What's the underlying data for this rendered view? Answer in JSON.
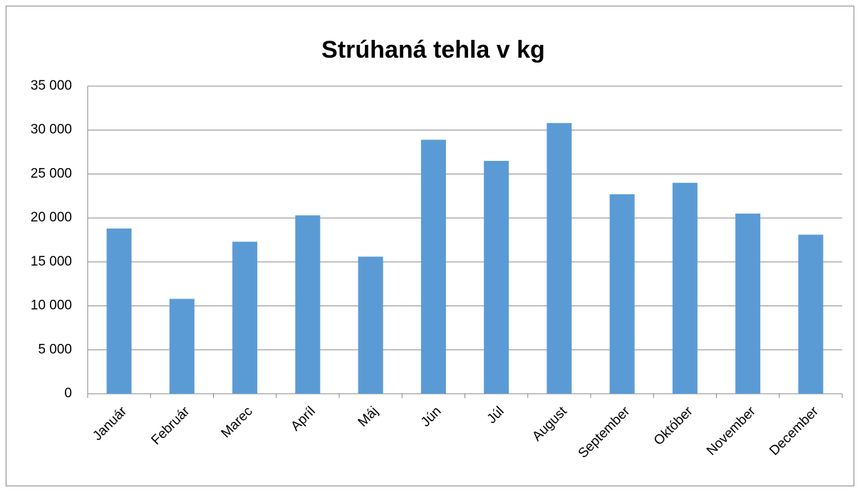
{
  "chart_data": {
    "type": "bar",
    "title": "Strúhaná tehla v kg",
    "categories": [
      "Január",
      "Február",
      "Marec",
      "Apríl",
      "Máj",
      "Jún",
      "Júl",
      "August",
      "September",
      "Október",
      "November",
      "December"
    ],
    "values": [
      18800,
      10800,
      17300,
      20300,
      15600,
      28900,
      26500,
      30800,
      22700,
      24000,
      20500,
      18100
    ],
    "color": "#5b9bd5",
    "ylim": [
      0,
      35000
    ],
    "yticks": [
      0,
      {
        "value": 5000,
        "label": "5 000"
      },
      {
        "value": 10000,
        "label": "10 000"
      },
      {
        "value": 15000,
        "label": "15 000"
      },
      {
        "value": 20000,
        "label": "20 000"
      },
      {
        "value": 25000,
        "label": "25 000"
      },
      {
        "value": 30000,
        "label": "30 000"
      },
      {
        "value": 35000,
        "label": "35 000"
      }
    ],
    "grid": true
  }
}
